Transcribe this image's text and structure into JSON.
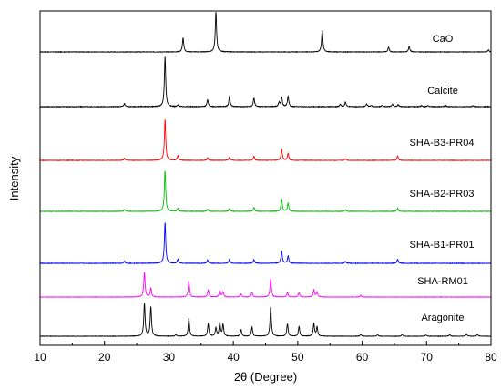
{
  "chart_data": {
    "type": "line",
    "title": "",
    "xlabel": "2θ (Degree)",
    "ylabel": "Intensity",
    "xlim": [
      10,
      80
    ],
    "xticks": [
      "10",
      "20",
      "30",
      "40",
      "50",
      "60",
      "70",
      "80"
    ],
    "y_ticks_shown": false,
    "grid": false,
    "legend": "none; series names printed at right end of each pattern",
    "series": [
      {
        "name": "CaO",
        "color": "#000000",
        "peaks": [
          [
            32.2,
            0.35
          ],
          [
            37.3,
            1.0
          ],
          [
            53.8,
            0.55
          ],
          [
            64.1,
            0.12
          ],
          [
            67.3,
            0.14
          ],
          [
            79.6,
            0.05
          ]
        ]
      },
      {
        "name": "Calcite",
        "color": "#000000",
        "peaks": [
          [
            23.1,
            0.06
          ],
          [
            29.4,
            1.0
          ],
          [
            31.4,
            0.03
          ],
          [
            36.0,
            0.14
          ],
          [
            39.4,
            0.2
          ],
          [
            43.2,
            0.17
          ],
          [
            47.1,
            0.08
          ],
          [
            47.5,
            0.19
          ],
          [
            48.5,
            0.21
          ],
          [
            56.6,
            0.05
          ],
          [
            57.4,
            0.09
          ],
          [
            60.7,
            0.05
          ],
          [
            61.4,
            0.03
          ],
          [
            63.1,
            0.03
          ],
          [
            64.7,
            0.05
          ],
          [
            65.6,
            0.04
          ],
          [
            69.2,
            0.02
          ],
          [
            70.2,
            0.02
          ],
          [
            72.9,
            0.03
          ],
          [
            77.2,
            0.02
          ]
        ]
      },
      {
        "name": "SHA-B3-PR04",
        "color": "#ff0000",
        "peaks": [
          [
            23.1,
            0.05
          ],
          [
            29.4,
            1.0
          ],
          [
            31.4,
            0.12
          ],
          [
            36.0,
            0.06
          ],
          [
            39.4,
            0.08
          ],
          [
            43.2,
            0.1
          ],
          [
            47.5,
            0.28
          ],
          [
            48.5,
            0.17
          ],
          [
            57.4,
            0.04
          ],
          [
            65.5,
            0.11
          ]
        ]
      },
      {
        "name": "SHA-B2-PR03",
        "color": "#00c000",
        "peaks": [
          [
            23.1,
            0.04
          ],
          [
            29.4,
            1.0
          ],
          [
            31.4,
            0.08
          ],
          [
            36.0,
            0.05
          ],
          [
            39.4,
            0.07
          ],
          [
            43.2,
            0.1
          ],
          [
            47.5,
            0.3
          ],
          [
            48.5,
            0.2
          ],
          [
            57.4,
            0.04
          ],
          [
            65.5,
            0.08
          ]
        ]
      },
      {
        "name": "SHA-B1-PR01",
        "color": "#0000ff",
        "peaks": [
          [
            23.1,
            0.05
          ],
          [
            29.4,
            1.0
          ],
          [
            31.4,
            0.1
          ],
          [
            36.0,
            0.08
          ],
          [
            39.4,
            0.1
          ],
          [
            43.2,
            0.09
          ],
          [
            47.5,
            0.3
          ],
          [
            48.5,
            0.18
          ],
          [
            57.4,
            0.05
          ],
          [
            65.5,
            0.1
          ]
        ]
      },
      {
        "name": "SHA-RM01",
        "color": "#ff00ff",
        "peaks": [
          [
            26.2,
            0.85
          ],
          [
            27.2,
            0.3
          ],
          [
            33.1,
            0.55
          ],
          [
            36.1,
            0.25
          ],
          [
            37.9,
            0.22
          ],
          [
            38.4,
            0.18
          ],
          [
            41.2,
            0.1
          ],
          [
            42.9,
            0.16
          ],
          [
            45.8,
            0.63
          ],
          [
            48.4,
            0.16
          ],
          [
            50.2,
            0.16
          ],
          [
            52.5,
            0.25
          ],
          [
            53.0,
            0.18
          ],
          [
            59.8,
            0.06
          ]
        ]
      },
      {
        "name": "Aragonite",
        "color": "#000000",
        "peaks": [
          [
            26.2,
            1.0
          ],
          [
            27.2,
            0.9
          ],
          [
            31.1,
            0.05
          ],
          [
            33.1,
            0.55
          ],
          [
            36.1,
            0.38
          ],
          [
            37.3,
            0.25
          ],
          [
            37.9,
            0.4
          ],
          [
            38.4,
            0.35
          ],
          [
            41.2,
            0.2
          ],
          [
            42.9,
            0.28
          ],
          [
            45.8,
            0.9
          ],
          [
            48.4,
            0.38
          ],
          [
            50.2,
            0.3
          ],
          [
            52.5,
            0.38
          ],
          [
            53.0,
            0.28
          ],
          [
            59.8,
            0.05
          ],
          [
            62.4,
            0.05
          ],
          [
            66.2,
            0.05
          ],
          [
            69.9,
            0.04
          ],
          [
            73.6,
            0.05
          ],
          [
            76.2,
            0.07
          ],
          [
            77.9,
            0.06
          ]
        ]
      }
    ]
  }
}
